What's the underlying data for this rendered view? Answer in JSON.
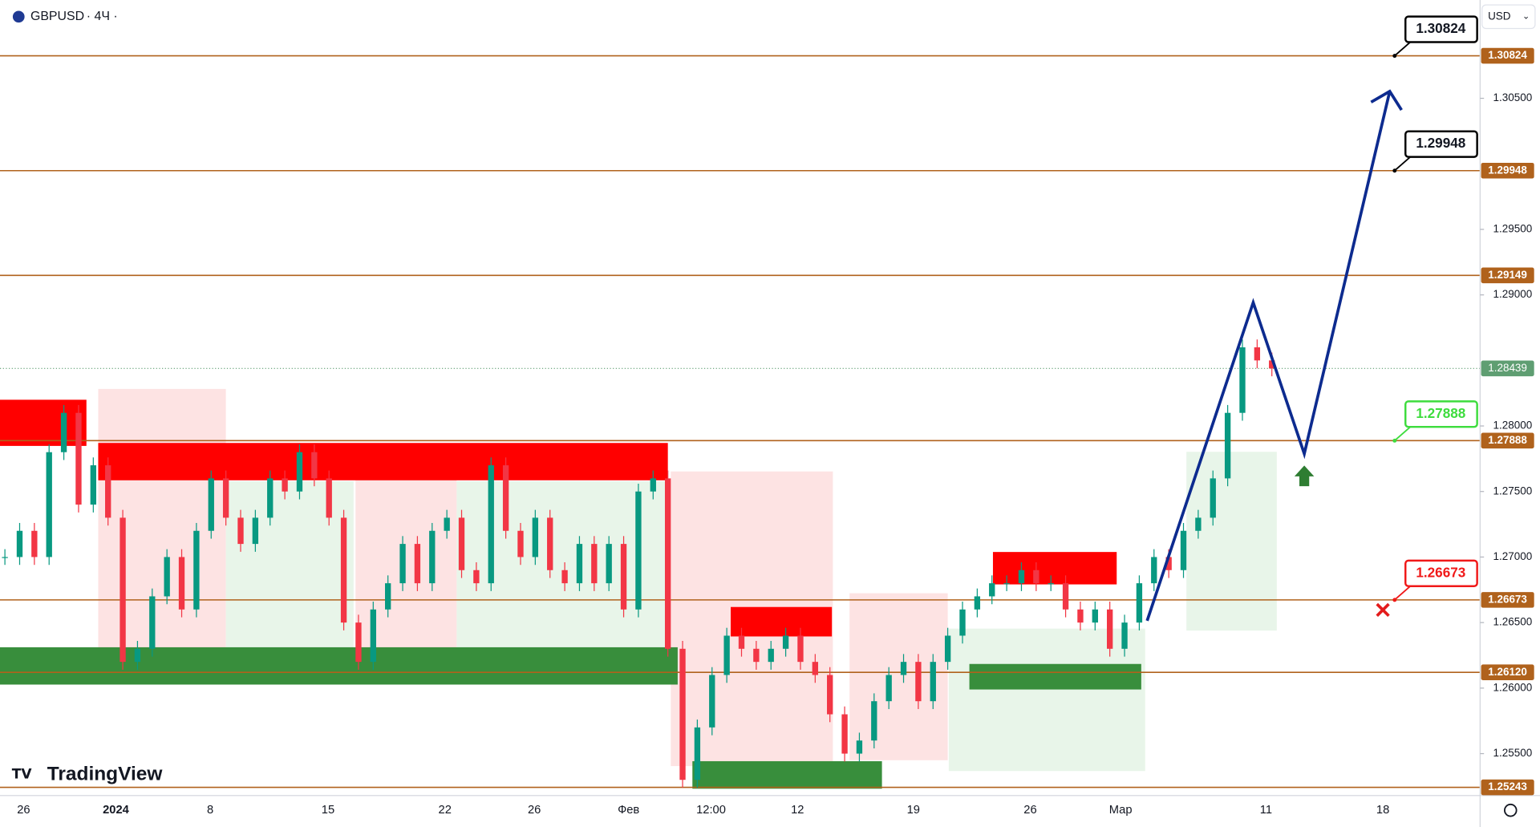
{
  "header": {
    "symbol": "GBPUSD",
    "interval": "· 4Ч ·",
    "currency": "USD",
    "brand": "TradingView"
  },
  "chart_data": {
    "type": "candlestick",
    "ylim": [
      1.2518,
      1.3125
    ],
    "yticks": [
      {
        "value": 1.305,
        "label": "1.30500"
      },
      {
        "value": 1.295,
        "label": "1.29500"
      },
      {
        "value": 1.29,
        "label": "1.29000"
      },
      {
        "value": 1.28,
        "label": "1.28000"
      },
      {
        "value": 1.275,
        "label": "1.27500"
      },
      {
        "value": 1.27,
        "label": "1.27000"
      },
      {
        "value": 1.265,
        "label": "1.26500"
      },
      {
        "value": 1.26,
        "label": "1.26000"
      },
      {
        "value": 1.255,
        "label": "1.25500"
      }
    ],
    "levels": [
      {
        "value": 1.30824,
        "callout": "#000000"
      },
      {
        "value": 1.29948,
        "callout": "#000000"
      },
      {
        "value": 1.29149
      },
      {
        "value": 1.27888,
        "callout": "#3ddc3d"
      },
      {
        "value": 1.26673,
        "callout": "#f01818"
      },
      {
        "value": 1.2612,
        "label": "1.26120"
      },
      {
        "value": 1.25243
      }
    ],
    "level_color": "#b0621c",
    "current_price": 1.28439,
    "current_color": "#5f9e72",
    "x_labels": [
      "26",
      "2024",
      "8",
      "15",
      "22",
      "26",
      "Фев",
      "12:00",
      "12",
      "19",
      "26",
      "Мар",
      "11",
      "18"
    ],
    "closes": [
      1.27,
      1.272,
      1.27,
      1.278,
      1.281,
      1.274,
      1.277,
      1.273,
      1.262,
      1.263,
      1.267,
      1.27,
      1.266,
      1.272,
      1.276,
      1.273,
      1.271,
      1.273,
      1.276,
      1.275,
      1.278,
      1.276,
      1.273,
      1.265,
      1.262,
      1.266,
      1.268,
      1.271,
      1.268,
      1.272,
      1.273,
      1.269,
      1.268,
      1.277,
      1.272,
      1.27,
      1.273,
      1.269,
      1.268,
      1.271,
      1.268,
      1.271,
      1.266,
      1.275,
      1.276,
      1.263,
      1.253,
      1.257,
      1.261,
      1.264,
      1.263,
      1.262,
      1.263,
      1.264,
      1.262,
      1.261,
      1.258,
      1.255,
      1.256,
      1.259,
      1.261,
      1.262,
      1.259,
      1.262,
      1.264,
      1.266,
      1.267,
      1.268,
      1.268,
      1.269,
      1.268,
      1.268,
      1.266,
      1.265,
      1.266,
      1.263,
      1.265,
      1.268,
      1.27,
      1.269,
      1.272,
      1.273,
      1.276,
      1.281,
      1.286,
      1.285,
      1.28439
    ],
    "up_color": "#089981",
    "down_color": "#f23645"
  }
}
